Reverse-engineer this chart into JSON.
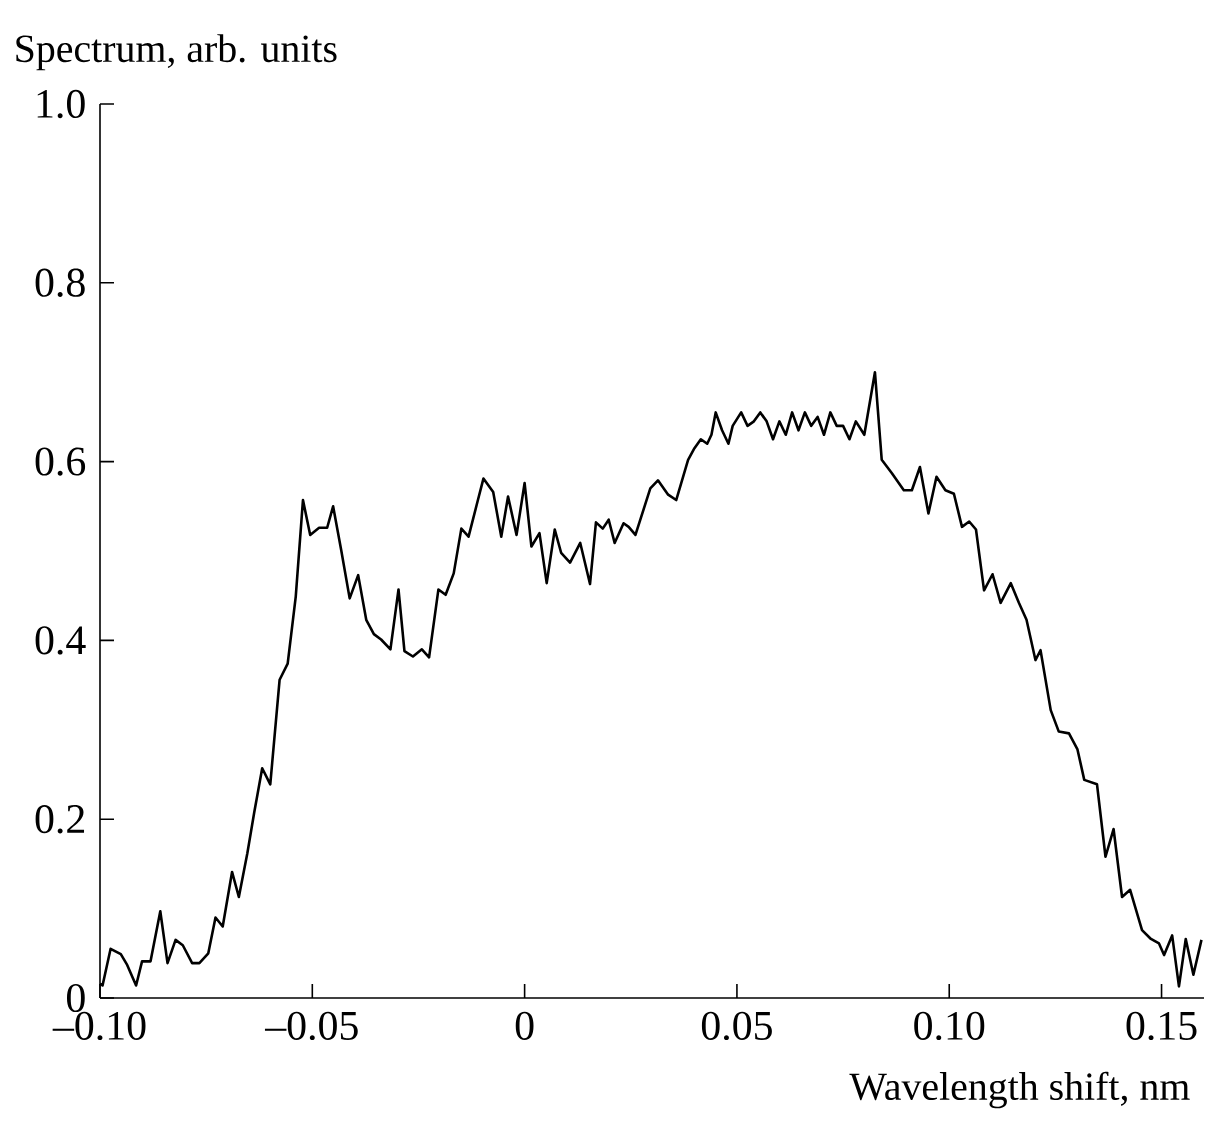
{
  "chart_data": {
    "type": "line",
    "xlabel": "Wavelength shift, nm",
    "ylabel": "Spectrum, arb. units",
    "color": "#000000",
    "xlim": [
      -0.1,
      0.16
    ],
    "ylim": [
      0,
      1.0
    ],
    "xticks": [
      {
        "value": -0.1,
        "label": "–0.10"
      },
      {
        "value": -0.05,
        "label": "–0.05"
      },
      0,
      0.05,
      {
        "value": 0.1,
        "label": "0.10"
      },
      0.15
    ],
    "yticks": [
      0,
      0.2,
      0.4,
      0.6,
      0.8,
      {
        "value": 1.0,
        "label": "1.0"
      }
    ],
    "x": [
      -0.1,
      -0.0994,
      -0.0975,
      -0.0951,
      -0.0936,
      -0.0915,
      -0.0901,
      -0.0881,
      -0.0858,
      -0.0841,
      -0.0822,
      -0.0805,
      -0.0783,
      -0.0766,
      -0.0745,
      -0.0728,
      -0.0711,
      -0.0689,
      -0.0673,
      -0.0653,
      -0.0637,
      -0.0618,
      -0.0599,
      -0.0577,
      -0.0558,
      -0.0539,
      -0.0522,
      -0.0505,
      -0.0484,
      -0.0465,
      -0.0451,
      -0.0432,
      -0.0412,
      -0.0392,
      -0.0373,
      -0.0355,
      -0.0338,
      -0.0316,
      -0.0297,
      -0.0283,
      -0.0263,
      -0.0242,
      -0.0225,
      -0.0203,
      -0.0186,
      -0.0167,
      -0.0149,
      -0.0132,
      -0.011,
      -0.0097,
      -0.0074,
      -0.0055,
      -0.0039,
      -0.0019,
      0.0,
      0.0016,
      0.0035,
      0.0052,
      0.0071,
      0.0086,
      0.0107,
      0.0131,
      0.0154,
      0.0168,
      0.0184,
      0.0198,
      0.0212,
      0.0233,
      0.0245,
      0.0261,
      0.0296,
      0.0314,
      0.0338,
      0.0357,
      0.0385,
      0.04,
      0.0415,
      0.043,
      0.044,
      0.045,
      0.0465,
      0.048,
      0.049,
      0.051,
      0.0525,
      0.054,
      0.0555,
      0.057,
      0.0585,
      0.06,
      0.0615,
      0.063,
      0.0645,
      0.066,
      0.0675,
      0.069,
      0.0705,
      0.072,
      0.0735,
      0.075,
      0.0765,
      0.078,
      0.08,
      0.0825,
      0.0841,
      0.0865,
      0.0893,
      0.0912,
      0.0931,
      0.0951,
      0.097,
      0.0991,
      0.1011,
      0.103,
      0.1047,
      0.1063,
      0.1082,
      0.1102,
      0.1121,
      0.1145,
      0.1164,
      0.1182,
      0.1203,
      0.1215,
      0.1239,
      0.1258,
      0.1282,
      0.1302,
      0.1318,
      0.1348,
      0.1368,
      0.1387,
      0.1407,
      0.1426,
      0.1454,
      0.1475,
      0.1494,
      0.1506,
      0.1525,
      0.1541,
      0.1557,
      0.1575,
      0.1594
    ],
    "values": [
      0.016,
      0.014,
      0.055,
      0.049,
      0.037,
      0.014,
      0.041,
      0.041,
      0.097,
      0.039,
      0.065,
      0.059,
      0.039,
      0.039,
      0.05,
      0.09,
      0.08,
      0.141,
      0.113,
      0.162,
      0.207,
      0.257,
      0.239,
      0.356,
      0.374,
      0.449,
      0.557,
      0.518,
      0.526,
      0.526,
      0.55,
      0.501,
      0.447,
      0.473,
      0.423,
      0.407,
      0.401,
      0.39,
      0.457,
      0.388,
      0.382,
      0.39,
      0.381,
      0.457,
      0.451,
      0.475,
      0.525,
      0.516,
      0.557,
      0.581,
      0.566,
      0.516,
      0.561,
      0.518,
      0.576,
      0.505,
      0.52,
      0.464,
      0.524,
      0.498,
      0.487,
      0.509,
      0.463,
      0.532,
      0.525,
      0.535,
      0.509,
      0.531,
      0.527,
      0.518,
      0.57,
      0.579,
      0.563,
      0.557,
      0.602,
      0.615,
      0.625,
      0.62,
      0.63,
      0.655,
      0.635,
      0.62,
      0.64,
      0.655,
      0.64,
      0.645,
      0.655,
      0.645,
      0.625,
      0.645,
      0.63,
      0.655,
      0.635,
      0.655,
      0.64,
      0.65,
      0.63,
      0.655,
      0.64,
      0.64,
      0.625,
      0.645,
      0.63,
      0.7,
      0.602,
      0.587,
      0.568,
      0.568,
      0.594,
      0.542,
      0.583,
      0.568,
      0.564,
      0.527,
      0.533,
      0.524,
      0.456,
      0.474,
      0.442,
      0.464,
      0.442,
      0.423,
      0.378,
      0.389,
      0.322,
      0.298,
      0.296,
      0.278,
      0.244,
      0.239,
      0.158,
      0.189,
      0.113,
      0.121,
      0.076,
      0.066,
      0.061,
      0.048,
      0.07,
      0.013,
      0.066,
      0.026,
      0.065
    ]
  }
}
